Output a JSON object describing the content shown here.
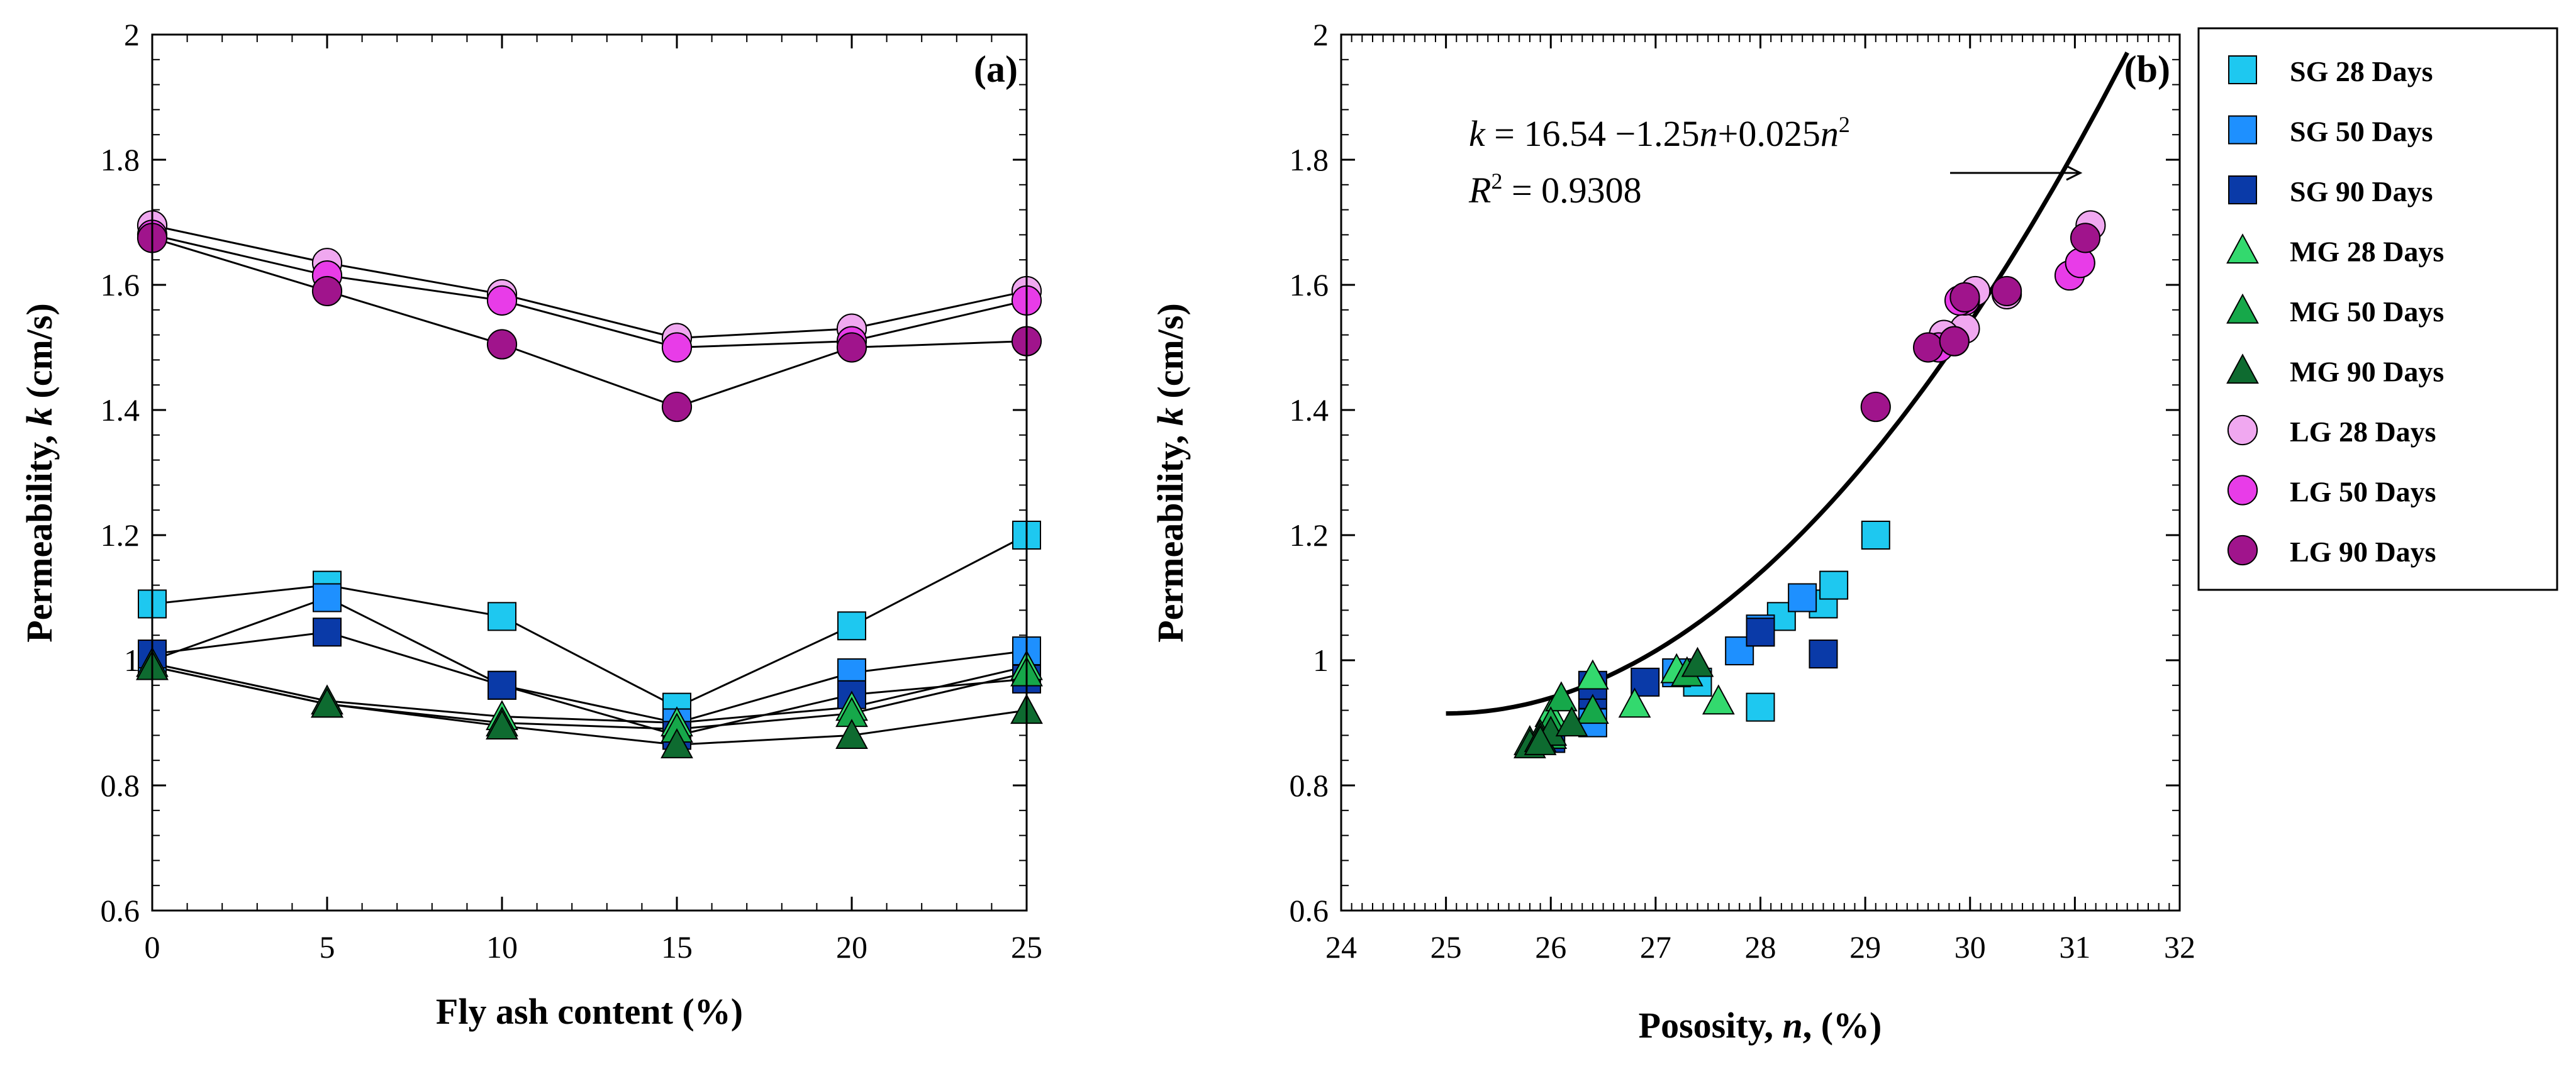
{
  "chart_data": [
    {
      "type": "line",
      "panel_label": "(a)",
      "xlabel": "Fly ash content (%)",
      "ylabel_main": "Permeability, ",
      "ylabel_var": "k",
      "ylabel_unit": " (cm/s)",
      "xlim": [
        0,
        25
      ],
      "ylim": [
        0.6,
        2.0
      ],
      "x_ticks": [
        "0",
        "5",
        "10",
        "15",
        "20",
        "25"
      ],
      "y_ticks": [
        "0.6",
        "0.8",
        "1",
        "1.2",
        "1.4",
        "1.6",
        "1.8",
        "2"
      ],
      "x": [
        0,
        5,
        10,
        15,
        20,
        25
      ],
      "series": [
        {
          "name": "SG 28 Days",
          "values": [
            1.09,
            1.12,
            1.07,
            0.925,
            1.055,
            1.2
          ]
        },
        {
          "name": "SG 50 Days",
          "values": [
            1.0,
            1.1,
            0.96,
            0.9,
            0.98,
            1.015
          ]
        },
        {
          "name": "SG 90 Days",
          "values": [
            1.01,
            1.045,
            0.96,
            0.88,
            0.945,
            0.97
          ]
        },
        {
          "name": "MG 28 Days",
          "values": [
            0.995,
            0.935,
            0.91,
            0.9,
            0.925,
            0.99
          ]
        },
        {
          "name": "MG 50 Days",
          "values": [
            0.99,
            0.93,
            0.9,
            0.89,
            0.915,
            0.98
          ]
        },
        {
          "name": "MG 90 Days",
          "values": [
            0.99,
            0.93,
            0.895,
            0.865,
            0.88,
            0.92
          ]
        },
        {
          "name": "LG 28 Days",
          "values": [
            1.695,
            1.635,
            1.585,
            1.515,
            1.53,
            1.59
          ]
        },
        {
          "name": "LG 50 Days",
          "values": [
            1.68,
            1.615,
            1.575,
            1.5,
            1.51,
            1.575
          ]
        },
        {
          "name": "LG 90 Days",
          "values": [
            1.675,
            1.59,
            1.505,
            1.405,
            1.5,
            1.51
          ]
        }
      ]
    },
    {
      "type": "scatter",
      "panel_label": "(b)",
      "xlabel_main": "Pososity, ",
      "xlabel_var": "n",
      "xlabel_unit": ", (%)",
      "ylabel_main": "Permeability, ",
      "ylabel_var": "k",
      "ylabel_unit": " (cm/s)",
      "xlim": [
        24,
        32
      ],
      "ylim": [
        0.6,
        2.0
      ],
      "x_ticks": [
        "24",
        "25",
        "26",
        "27",
        "28",
        "29",
        "30",
        "31",
        "32"
      ],
      "y_ticks": [
        "0.6",
        "0.8",
        "1",
        "1.2",
        "1.4",
        "1.6",
        "1.8",
        "2"
      ],
      "fit": {
        "a": 16.54,
        "b": -1.25,
        "c": 0.025,
        "x_range": [
          25,
          31.5
        ]
      },
      "equation": {
        "k": "k",
        "eq_rest_1": "  = 16.54 −1.25",
        "n1": "n",
        "eq_rest_2": "+0.025",
        "n2": "n",
        "sup2": "2",
        "r": "R",
        "r_sup": "2",
        "r_rest": " = 0.9308"
      },
      "series": [
        {
          "name": "SG 28 Days",
          "points": [
            [
              28.0,
              0.925
            ],
            [
              27.4,
              0.965
            ],
            [
              28.2,
              1.07
            ],
            [
              28.6,
              1.09
            ],
            [
              28.7,
              1.12
            ],
            [
              29.1,
              1.2
            ]
          ]
        },
        {
          "name": "SG 50 Days",
          "points": [
            [
              26.4,
              0.9
            ],
            [
              27.2,
              0.98
            ],
            [
              27.8,
              1.015
            ],
            [
              28.0,
              1.045
            ],
            [
              28.4,
              1.1
            ],
            [
              28.0,
              1.05
            ]
          ]
        },
        {
          "name": "SG 90 Days",
          "points": [
            [
              26.0,
              0.875
            ],
            [
              26.4,
              0.945
            ],
            [
              26.4,
              0.96
            ],
            [
              26.9,
              0.965
            ],
            [
              28.0,
              1.045
            ],
            [
              28.6,
              1.01
            ]
          ]
        },
        {
          "name": "MG 28 Days",
          "points": [
            [
              26.8,
              0.93
            ],
            [
              27.2,
              0.985
            ],
            [
              27.6,
              0.935
            ],
            [
              26.0,
              0.915
            ],
            [
              26.4,
              0.975
            ],
            [
              25.8,
              0.87
            ]
          ]
        },
        {
          "name": "MG 50 Days",
          "points": [
            [
              26.1,
              0.94
            ],
            [
              26.0,
              0.9
            ],
            [
              25.9,
              0.88
            ],
            [
              26.4,
              0.92
            ],
            [
              27.3,
              0.98
            ],
            [
              26.0,
              0.88
            ]
          ]
        },
        {
          "name": "MG 90 Days",
          "points": [
            [
              25.8,
              0.865
            ],
            [
              25.9,
              0.875
            ],
            [
              26.0,
              0.885
            ],
            [
              27.4,
              0.995
            ],
            [
              26.2,
              0.9
            ],
            [
              25.9,
              0.87
            ]
          ]
        },
        {
          "name": "LG 28 Days",
          "points": [
            [
              30.05,
              1.59
            ],
            [
              30.35,
              1.585
            ],
            [
              29.95,
              1.53
            ],
            [
              29.75,
              1.52
            ],
            [
              31.15,
              1.695
            ],
            [
              31.05,
              1.635
            ]
          ]
        },
        {
          "name": "LG 50 Days",
          "points": [
            [
              29.95,
              1.575
            ],
            [
              30.95,
              1.615
            ],
            [
              29.85,
              1.51
            ],
            [
              29.7,
              1.5
            ],
            [
              31.05,
              1.635
            ],
            [
              29.9,
              1.575
            ]
          ]
        },
        {
          "name": "LG 90 Days",
          "points": [
            [
              29.6,
              1.5
            ],
            [
              29.85,
              1.51
            ],
            [
              29.1,
              1.405
            ],
            [
              30.35,
              1.59
            ],
            [
              31.1,
              1.675
            ],
            [
              29.95,
              1.58
            ]
          ]
        }
      ]
    }
  ],
  "legend": [
    {
      "name": "SG 28 Days",
      "marker": "square",
      "color": "#1EC8F0"
    },
    {
      "name": "SG 50 Days",
      "marker": "square",
      "color": "#1E90FF"
    },
    {
      "name": "SG 90 Days",
      "marker": "square",
      "color": "#0A3AA8"
    },
    {
      "name": "MG 28 Days",
      "marker": "triangle",
      "color": "#33D96E"
    },
    {
      "name": "MG 50 Days",
      "marker": "triangle",
      "color": "#16A84A"
    },
    {
      "name": "MG 90 Days",
      "marker": "triangle",
      "color": "#0E6B30"
    },
    {
      "name": "LG 28 Days",
      "marker": "circle",
      "color": "#F0A8F0"
    },
    {
      "name": "LG 50 Days",
      "marker": "circle",
      "color": "#E83CE8"
    },
    {
      "name": "LG 90 Days",
      "marker": "circle",
      "color": "#A0148C"
    }
  ]
}
